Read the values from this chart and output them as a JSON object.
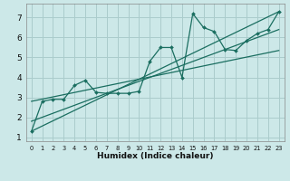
{
  "title": "",
  "xlabel": "Humidex (Indice chaleur)",
  "bg_color": "#cce8e8",
  "grid_color": "#aacccc",
  "line_color": "#1a6e60",
  "xlim": [
    -0.5,
    23.5
  ],
  "ylim": [
    0.8,
    7.7
  ],
  "xticks": [
    0,
    1,
    2,
    3,
    4,
    5,
    6,
    7,
    8,
    9,
    10,
    11,
    12,
    13,
    14,
    15,
    16,
    17,
    18,
    19,
    20,
    21,
    22,
    23
  ],
  "yticks": [
    1,
    2,
    3,
    4,
    5,
    6,
    7
  ],
  "series1_x": [
    0,
    1,
    2,
    3,
    4,
    5,
    6,
    7,
    8,
    9,
    10,
    11,
    12,
    13,
    14,
    15,
    16,
    17,
    18,
    19,
    20,
    21,
    22,
    23
  ],
  "series1_y": [
    1.3,
    2.8,
    2.9,
    2.9,
    3.6,
    3.85,
    3.25,
    3.2,
    3.2,
    3.2,
    3.3,
    4.8,
    5.5,
    5.5,
    4.0,
    7.2,
    6.5,
    6.3,
    5.4,
    5.35,
    5.85,
    6.2,
    6.4,
    7.3
  ],
  "trend1_x": [
    0,
    23
  ],
  "trend1_y": [
    1.3,
    7.3
  ],
  "trend2_x": [
    0,
    23
  ],
  "trend2_y": [
    2.8,
    5.35
  ],
  "trend3_x": [
    0,
    23
  ],
  "trend3_y": [
    1.8,
    6.4
  ]
}
